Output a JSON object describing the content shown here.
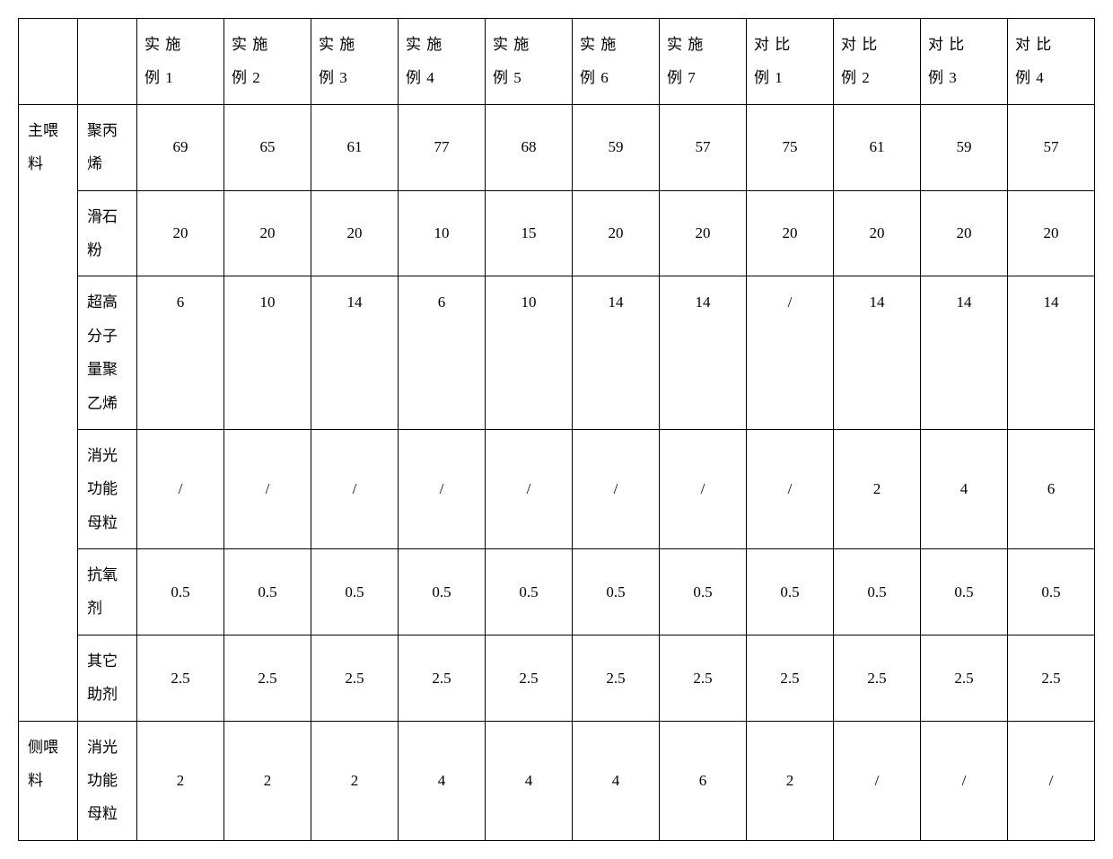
{
  "table": {
    "border_color": "#000000",
    "background_color": "#ffffff",
    "text_color": "#000000",
    "font_size_pt": 13,
    "headers": {
      "blank1": "",
      "blank2": "",
      "cols": [
        {
          "l1": "实 施",
          "l2": "例 1"
        },
        {
          "l1": "实 施",
          "l2": "例 2"
        },
        {
          "l1": "实 施",
          "l2": "例 3"
        },
        {
          "l1": "实 施",
          "l2": "例 4"
        },
        {
          "l1": "实 施",
          "l2": "例 5"
        },
        {
          "l1": "实 施",
          "l2": "例 6"
        },
        {
          "l1": "实 施",
          "l2": "例 7"
        },
        {
          "l1": "对 比",
          "l2": "例 1"
        },
        {
          "l1": "对 比",
          "l2": "例 2"
        },
        {
          "l1": "对 比",
          "l2": "例 3"
        },
        {
          "l1": "对 比",
          "l2": "例 4"
        }
      ]
    },
    "groups": [
      {
        "label": "主喂料",
        "rows": [
          {
            "label": "聚丙烯",
            "values": [
              "69",
              "65",
              "61",
              "77",
              "68",
              "59",
              "57",
              "75",
              "61",
              "59",
              "57"
            ]
          },
          {
            "label": "滑石粉",
            "values": [
              "20",
              "20",
              "20",
              "10",
              "15",
              "20",
              "20",
              "20",
              "20",
              "20",
              "20"
            ]
          },
          {
            "label_multi": {
              "l1": "超高分子量聚",
              "l2": "乙烯"
            },
            "values": [
              "6",
              "10",
              "14",
              "6",
              "10",
              "14",
              "14",
              "/",
              "14",
              "14",
              "14"
            ]
          },
          {
            "label": "消光功能母粒",
            "values": [
              "/",
              "/",
              "/",
              "/",
              "/",
              "/",
              "/",
              "/",
              "2",
              "4",
              "6"
            ]
          },
          {
            "label": "抗氧剂",
            "values": [
              "0.5",
              "0.5",
              "0.5",
              "0.5",
              "0.5",
              "0.5",
              "0.5",
              "0.5",
              "0.5",
              "0.5",
              "0.5"
            ]
          },
          {
            "label": "其它助剂",
            "values": [
              "2.5",
              "2.5",
              "2.5",
              "2.5",
              "2.5",
              "2.5",
              "2.5",
              "2.5",
              "2.5",
              "2.5",
              "2.5"
            ]
          }
        ]
      },
      {
        "label": "侧喂料",
        "rows": [
          {
            "label": "消光功能母粒",
            "values": [
              "2",
              "2",
              "2",
              "4",
              "4",
              "4",
              "6",
              "2",
              "/",
              "/",
              "/"
            ]
          }
        ]
      }
    ]
  }
}
